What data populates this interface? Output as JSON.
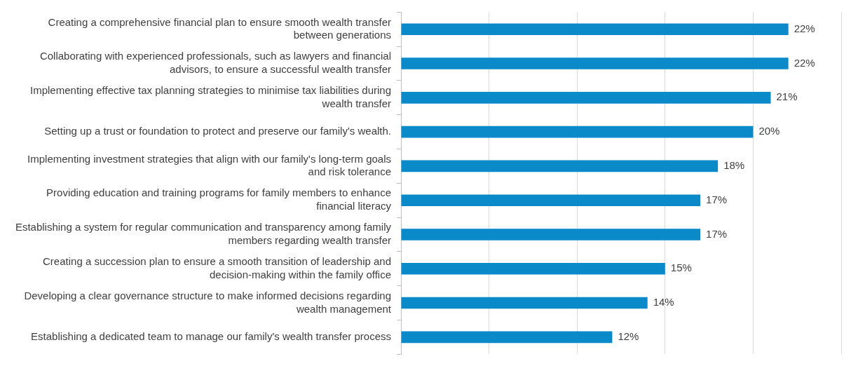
{
  "chart_data": {
    "type": "bar",
    "orientation": "horizontal",
    "categories": [
      "Creating a comprehensive financial plan to ensure smooth wealth transfer between generations",
      "Collaborating with experienced professionals, such as lawyers and financial advisors, to ensure a successful wealth transfer",
      "Implementing effective tax planning strategies to minimise tax liabilities during wealth transfer",
      "Setting up a trust or foundation to protect and preserve our family's wealth.",
      "Implementing investment strategies that align with our family's long-term goals and risk tolerance",
      "Providing education and training programs for family members to enhance financial literacy",
      "Establishing a system for regular communication and transparency among family members regarding wealth transfer",
      "Creating a succession plan to ensure a smooth transition of leadership and decision-making within the family office",
      "Developing a clear governance structure to make informed decisions regarding wealth management",
      "Establishing a dedicated team to manage our family's wealth transfer process"
    ],
    "values": [
      22,
      22,
      21,
      20,
      18,
      17,
      17,
      15,
      14,
      12
    ],
    "value_labels": [
      "22%",
      "22%",
      "21%",
      "20%",
      "18%",
      "17%",
      "17%",
      "15%",
      "14%",
      "12%"
    ],
    "color": "#0a8ac9",
    "xlim": [
      0,
      25
    ],
    "xticks": [
      0,
      5,
      10,
      15,
      20,
      25
    ],
    "grid": true,
    "data_labels": true,
    "tick_labels": "y"
  }
}
